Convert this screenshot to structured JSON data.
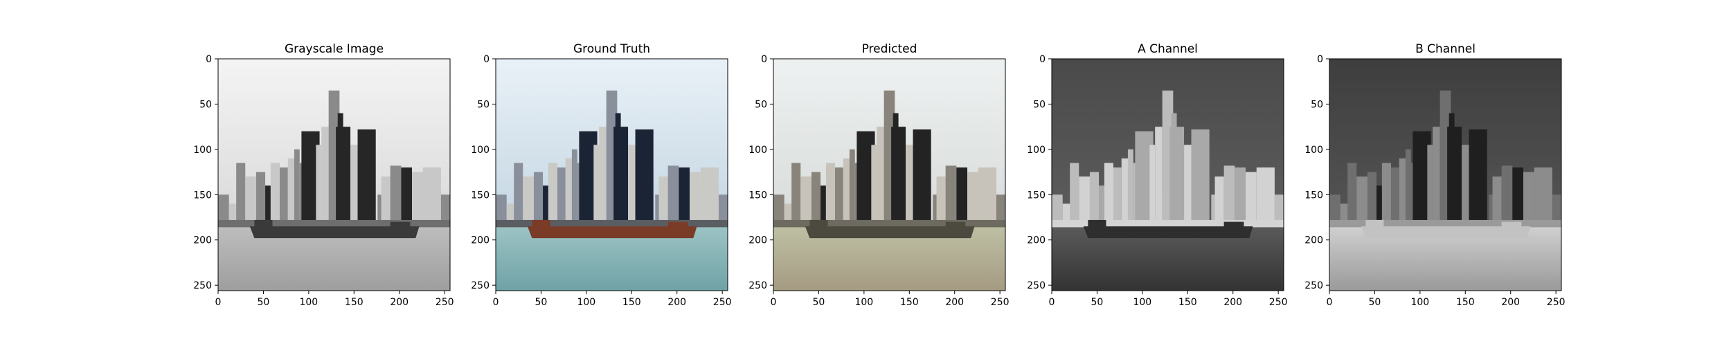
{
  "chart_data": [
    {
      "type": "image",
      "title": "Grayscale Image",
      "image_kind": "grayscale",
      "xlim": [
        0,
        256
      ],
      "ylim": [
        256,
        0
      ],
      "xticks": [
        0,
        50,
        100,
        150,
        200,
        250
      ],
      "yticks": [
        0,
        50,
        100,
        150,
        200,
        250
      ],
      "grid": false
    },
    {
      "type": "image",
      "title": "Ground Truth",
      "image_kind": "color",
      "xlim": [
        0,
        256
      ],
      "ylim": [
        256,
        0
      ],
      "xticks": [
        0,
        50,
        100,
        150,
        200,
        250
      ],
      "yticks": [
        0,
        50,
        100,
        150,
        200,
        250
      ],
      "grid": false
    },
    {
      "type": "image",
      "title": "Predicted",
      "image_kind": "predicted",
      "xlim": [
        0,
        256
      ],
      "ylim": [
        256,
        0
      ],
      "xticks": [
        0,
        50,
        100,
        150,
        200,
        250
      ],
      "yticks": [
        0,
        50,
        100,
        150,
        200,
        250
      ],
      "grid": false
    },
    {
      "type": "image",
      "title": "A Channel",
      "image_kind": "a_channel",
      "xlim": [
        0,
        256
      ],
      "ylim": [
        256,
        0
      ],
      "xticks": [
        0,
        50,
        100,
        150,
        200,
        250
      ],
      "yticks": [
        0,
        50,
        100,
        150,
        200,
        250
      ],
      "grid": false
    },
    {
      "type": "image",
      "title": "B Channel",
      "image_kind": "b_channel",
      "xlim": [
        0,
        256
      ],
      "ylim": [
        256,
        0
      ],
      "xticks": [
        0,
        50,
        100,
        150,
        200,
        250
      ],
      "yticks": [
        0,
        50,
        100,
        150,
        200,
        250
      ],
      "grid": false
    }
  ],
  "palettes": {
    "grayscale": {
      "sky_top": "#f4f4f4",
      "sky_bottom": "#d9d9d9",
      "dark": "#262626",
      "mid": "#8a8a8a",
      "light": "#c8c8c8",
      "water_top": "#bdbdbd",
      "water_bottom": "#9e9e9e",
      "ship": "#3a3a3a",
      "shore": "#6e6e6e"
    },
    "color": {
      "sky_top": "#e9f1f7",
      "sky_bottom": "#c4d6e3",
      "dark": "#1b2435",
      "mid": "#8a8f9c",
      "light": "#c9c9c6",
      "water_top": "#9cc3c4",
      "water_bottom": "#6fa2a6",
      "ship": "#7a3b27",
      "shore": "#5a5e63"
    },
    "predicted": {
      "sky_top": "#eef1f1",
      "sky_bottom": "#d7dbd9",
      "dark": "#232323",
      "mid": "#88847c",
      "light": "#c7c3bb",
      "water_top": "#bdbfa3",
      "water_bottom": "#a59b82",
      "ship": "#4c4a3e",
      "shore": "#6d6a5f"
    },
    "a_channel": {
      "sky_top": "#4a4a4a",
      "sky_bottom": "#5d5d5d",
      "dark": "#a9a9a9",
      "mid": "#bcbcbc",
      "light": "#d2d2d2",
      "water_top": "#5a5a5a",
      "water_bottom": "#333333",
      "ship": "#2e2e2e",
      "shore": "#d4d4d4"
    },
    "b_channel": {
      "sky_top": "#3e3e3e",
      "sky_bottom": "#555555",
      "dark": "#1f1f1f",
      "mid": "#6f6f6f",
      "light": "#8c8c8c",
      "water_top": "#cfcfcf",
      "water_bottom": "#9a9a9a",
      "ship": "#c2c2c2",
      "shore": "#9a9a9a"
    }
  }
}
